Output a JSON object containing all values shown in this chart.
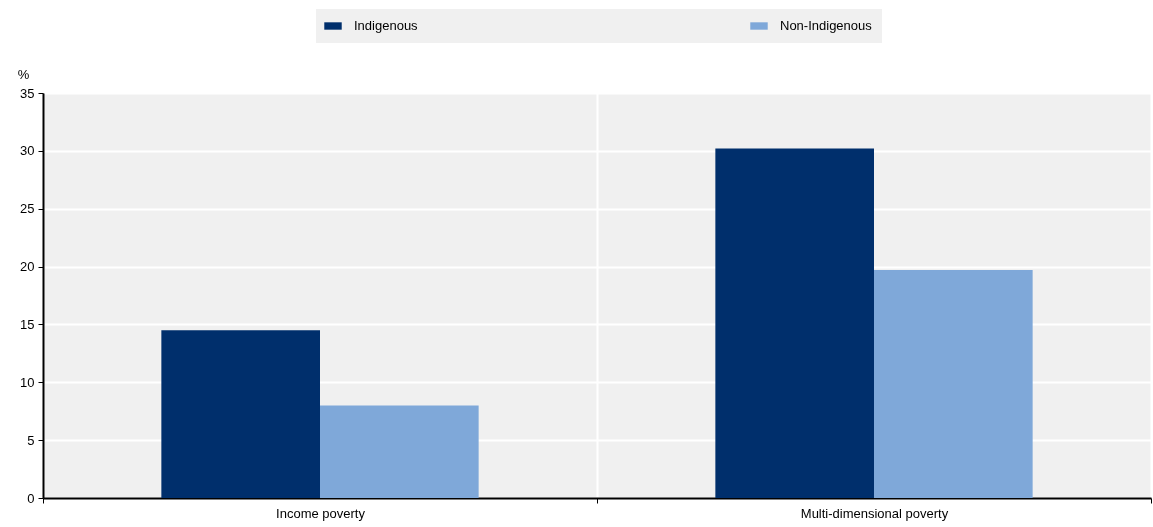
{
  "chart_data": {
    "type": "bar",
    "ylabel": "%",
    "categories": [
      "Income poverty",
      "Multi-dimensional poverty"
    ],
    "series": [
      {
        "name": "Indigenous",
        "color": "#002f6c",
        "values": [
          14.5,
          30.2
        ]
      },
      {
        "name": "Non-Indigenous",
        "color": "#7fa8d9",
        "values": [
          8.0,
          19.7
        ]
      }
    ],
    "ylim": [
      0,
      35
    ],
    "yticks": [
      0,
      5,
      10,
      15,
      20,
      25,
      30,
      35
    ],
    "grid": true,
    "legend": "top"
  }
}
